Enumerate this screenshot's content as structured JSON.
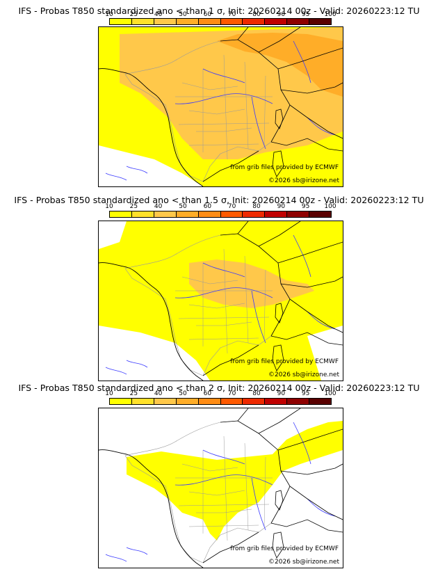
{
  "scale": {
    "labels": [
      "10",
      "25",
      "40",
      "50",
      "60",
      "70",
      "80",
      "90",
      "95",
      "100"
    ],
    "colors": [
      "#ffff00",
      "#ffe12a",
      "#ffc84a",
      "#ffad28",
      "#ff8c14",
      "#ff5a00",
      "#ee2a00",
      "#c00000",
      "#8e0000",
      "#5a0000"
    ]
  },
  "colors": {
    "land_yellow": "#ffff00",
    "land_orange_light": "#ffc84a",
    "land_orange": "#ffad28",
    "borders": "#000000",
    "rivers": "#3a3aff",
    "departments": "#9a9a9a"
  },
  "panels": [
    {
      "title": "IFS - Probas T850  standardized ano < than 1 σ, Init: 20260214 00z - Valid: 20260223:12 TU",
      "credit_ecmwf": "from grib files provided by ECMWF",
      "credit_site": "©2026 sb@irizone.net",
      "probability_level": "high"
    },
    {
      "title": "IFS - Probas T850  standardized ano < than 1.5 σ, Init: 20260214 00z - Valid: 20260223:12 TU",
      "credit_ecmwf": "from grib files provided by ECMWF",
      "credit_site": "©2026 sb@irizone.net",
      "probability_level": "medium"
    },
    {
      "title": "IFS - Probas T850  standardized ano < than 2 σ, Init: 20260214 00z - Valid: 20260223:12 TU",
      "credit_ecmwf": "from grib files provided by ECMWF",
      "credit_site": "©2026 sb@irizone.net",
      "probability_level": "low"
    }
  ]
}
